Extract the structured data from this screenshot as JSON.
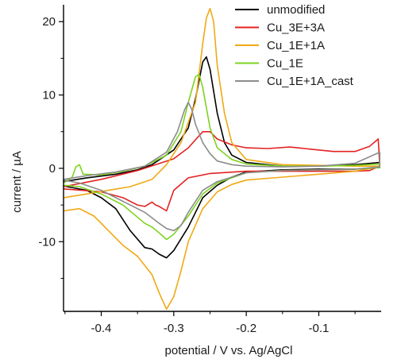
{
  "chart_data": {
    "type": "line",
    "title": "",
    "xlabel": "potential / V vs. Ag/AgCl",
    "ylabel": "current / µA",
    "xlim": [
      -0.452,
      -0.014
    ],
    "ylim": [
      -19.5,
      22.3
    ],
    "x_ticks": [
      {
        "value": -0.4,
        "label": "-0.4"
      },
      {
        "value": -0.3,
        "label": "-0.3"
      },
      {
        "value": -0.2,
        "label": "-0.2"
      },
      {
        "value": -0.1,
        "label": "-0.1"
      }
    ],
    "y_ticks": [
      {
        "value": 20,
        "label": "20"
      },
      {
        "value": 10,
        "label": "10"
      },
      {
        "value": 0,
        "label": "0"
      },
      {
        "value": -10,
        "label": "-10"
      }
    ],
    "grid": false,
    "legend_position": "top-right",
    "series": [
      {
        "name": "unmodified",
        "color": "#000000",
        "x": [
          -0.452,
          -0.42,
          -0.38,
          -0.35,
          -0.33,
          -0.3,
          -0.28,
          -0.27,
          -0.26,
          -0.255,
          -0.25,
          -0.24,
          -0.23,
          -0.22,
          -0.2,
          -0.15,
          -0.1,
          -0.05,
          -0.016,
          -0.016,
          -0.05,
          -0.1,
          -0.15,
          -0.2,
          -0.22,
          -0.24,
          -0.26,
          -0.28,
          -0.3,
          -0.31,
          -0.32,
          -0.33,
          -0.34,
          -0.36,
          -0.38,
          -0.4,
          -0.42,
          -0.452
        ],
        "y": [
          -1.8,
          -1.3,
          -0.8,
          -0.2,
          0.5,
          2.5,
          5.5,
          9.5,
          14.5,
          15.2,
          13.5,
          7.5,
          3.5,
          1.8,
          0.8,
          0.3,
          0.3,
          0.5,
          0.8,
          0.1,
          -0.1,
          -0.1,
          -0.2,
          -0.5,
          -1.2,
          -2.3,
          -4.0,
          -8.0,
          -11.2,
          -12.2,
          -11.7,
          -11.0,
          -10.8,
          -8.5,
          -5.5,
          -4.0,
          -3.0,
          -2.4
        ]
      },
      {
        "name": "Cu_3E+3A",
        "color": "#e32222",
        "x": [
          -0.452,
          -0.4,
          -0.35,
          -0.3,
          -0.28,
          -0.26,
          -0.25,
          -0.24,
          -0.22,
          -0.2,
          -0.17,
          -0.14,
          -0.11,
          -0.08,
          -0.05,
          -0.03,
          -0.018,
          -0.016,
          -0.03,
          -0.05,
          -0.1,
          -0.15,
          -0.2,
          -0.25,
          -0.28,
          -0.3,
          -0.31,
          -0.32,
          -0.325,
          -0.33,
          -0.34,
          -0.35,
          -0.37,
          -0.4,
          -0.452
        ],
        "y": [
          -2.5,
          -1.5,
          -0.3,
          1.3,
          2.8,
          5.0,
          5.0,
          4.0,
          3.2,
          2.8,
          2.7,
          2.9,
          2.6,
          2.3,
          2.3,
          3.0,
          4.0,
          0.3,
          -0.3,
          -0.4,
          -0.4,
          -0.4,
          -0.4,
          -0.7,
          -1.3,
          -3.0,
          -5.8,
          -5.2,
          -5.0,
          -4.6,
          -5.2,
          -5.0,
          -4.0,
          -3.2,
          -2.8
        ]
      },
      {
        "name": "Cu_1E+1A",
        "color": "#f0a914",
        "x": [
          -0.452,
          -0.42,
          -0.39,
          -0.36,
          -0.33,
          -0.31,
          -0.29,
          -0.27,
          -0.26,
          -0.255,
          -0.25,
          -0.245,
          -0.24,
          -0.23,
          -0.22,
          -0.2,
          -0.15,
          -0.1,
          -0.05,
          -0.016,
          -0.016,
          -0.05,
          -0.1,
          -0.15,
          -0.2,
          -0.22,
          -0.24,
          -0.26,
          -0.28,
          -0.29,
          -0.3,
          -0.31,
          -0.32,
          -0.33,
          -0.35,
          -0.37,
          -0.39,
          -0.41,
          -0.43,
          -0.452
        ],
        "y": [
          -4.0,
          -3.5,
          -3.0,
          -2.5,
          -1.5,
          0.5,
          3.5,
          9.0,
          17.0,
          20.5,
          21.8,
          20.0,
          14.0,
          7.5,
          3.5,
          1.2,
          0.5,
          0.4,
          0.3,
          0.3,
          0.2,
          -0.4,
          -0.8,
          -1.2,
          -1.6,
          -2.2,
          -3.2,
          -5.5,
          -10.0,
          -14.0,
          -17.5,
          -19.2,
          -17.0,
          -14.5,
          -12.0,
          -10.5,
          -8.5,
          -6.5,
          -5.5,
          -5.8
        ]
      },
      {
        "name": "Cu_1E",
        "color": "#7ed321",
        "x": [
          -0.452,
          -0.44,
          -0.435,
          -0.43,
          -0.425,
          -0.4,
          -0.37,
          -0.34,
          -0.31,
          -0.29,
          -0.28,
          -0.27,
          -0.265,
          -0.26,
          -0.25,
          -0.24,
          -0.22,
          -0.2,
          -0.15,
          -0.1,
          -0.05,
          -0.016,
          -0.016,
          -0.05,
          -0.1,
          -0.15,
          -0.2,
          -0.24,
          -0.26,
          -0.28,
          -0.3,
          -0.31,
          -0.32,
          -0.33,
          -0.34,
          -0.37,
          -0.4,
          -0.43,
          -0.452
        ],
        "y": [
          -2.0,
          -1.2,
          0.2,
          0.5,
          -0.8,
          -0.9,
          -0.4,
          0.3,
          1.8,
          5.0,
          9.0,
          12.5,
          12.8,
          11.0,
          5.5,
          2.8,
          1.2,
          0.6,
          0.3,
          0.3,
          0.4,
          0.6,
          0.1,
          -0.1,
          -0.2,
          -0.3,
          -0.6,
          -2.0,
          -3.5,
          -6.5,
          -9.0,
          -9.7,
          -8.8,
          -8.0,
          -7.5,
          -5.0,
          -3.5,
          -2.5,
          -2.3
        ]
      },
      {
        "name": "Cu_1E+1A_cast",
        "color": "#8c8c8c",
        "x": [
          -0.452,
          -0.42,
          -0.38,
          -0.34,
          -0.31,
          -0.295,
          -0.285,
          -0.28,
          -0.275,
          -0.27,
          -0.26,
          -0.25,
          -0.24,
          -0.22,
          -0.2,
          -0.15,
          -0.1,
          -0.05,
          -0.016,
          -0.016,
          -0.05,
          -0.1,
          -0.15,
          -0.2,
          -0.24,
          -0.26,
          -0.28,
          -0.29,
          -0.3,
          -0.31,
          -0.32,
          -0.34,
          -0.37,
          -0.4,
          -0.43,
          -0.452
        ],
        "y": [
          -1.5,
          -1.0,
          -0.5,
          0.3,
          2.2,
          5.0,
          8.0,
          9.0,
          8.0,
          6.0,
          3.5,
          2.0,
          1.0,
          0.5,
          0.3,
          0.2,
          0.3,
          0.7,
          2.2,
          0.2,
          -0.1,
          -0.2,
          -0.3,
          -0.6,
          -1.8,
          -3.0,
          -6.0,
          -7.8,
          -8.5,
          -8.2,
          -7.5,
          -6.0,
          -4.5,
          -3.0,
          -2.0,
          -1.6
        ]
      }
    ]
  }
}
